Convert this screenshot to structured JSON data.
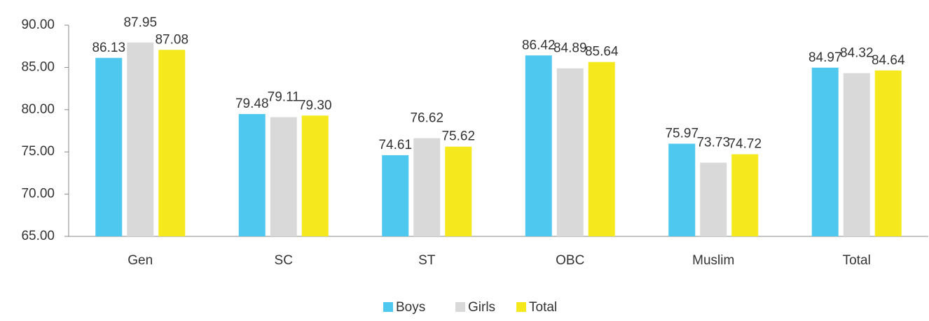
{
  "chart_data": {
    "type": "bar",
    "categories": [
      "Gen",
      "SC",
      "ST",
      "OBC",
      "Muslim",
      "Total"
    ],
    "series": [
      {
        "name": "Boys",
        "color": "#4fc8f0",
        "values": [
          86.13,
          79.48,
          74.61,
          86.42,
          75.97,
          84.97
        ],
        "value_labels": [
          "86.13",
          "79.48",
          "74.61",
          "86.42",
          "75.97",
          "84.97"
        ]
      },
      {
        "name": "Girls",
        "color": "#d9d9d9",
        "values": [
          87.95,
          79.11,
          76.62,
          84.89,
          73.73,
          84.32
        ],
        "value_labels": [
          "87.95",
          "79.11",
          "76.62",
          "84.89",
          "73.73",
          "84.32"
        ]
      },
      {
        "name": "Total",
        "color": "#f5e81c",
        "values": [
          87.08,
          79.3,
          75.62,
          85.64,
          74.72,
          84.64
        ],
        "value_labels": [
          "87.08",
          "79.30",
          "75.62",
          "85.64",
          "74.72",
          "84.64"
        ]
      }
    ],
    "ylim": [
      65,
      90
    ],
    "yticks": [
      {
        "value": 65,
        "label": "65.00"
      },
      {
        "value": 70,
        "label": "70.00"
      },
      {
        "value": 75,
        "label": "75.00"
      },
      {
        "value": 80,
        "label": "80.00"
      },
      {
        "value": 85,
        "label": "85.00"
      },
      {
        "value": 90,
        "label": "90.00"
      }
    ],
    "grid": false,
    "legend": "bottom"
  }
}
